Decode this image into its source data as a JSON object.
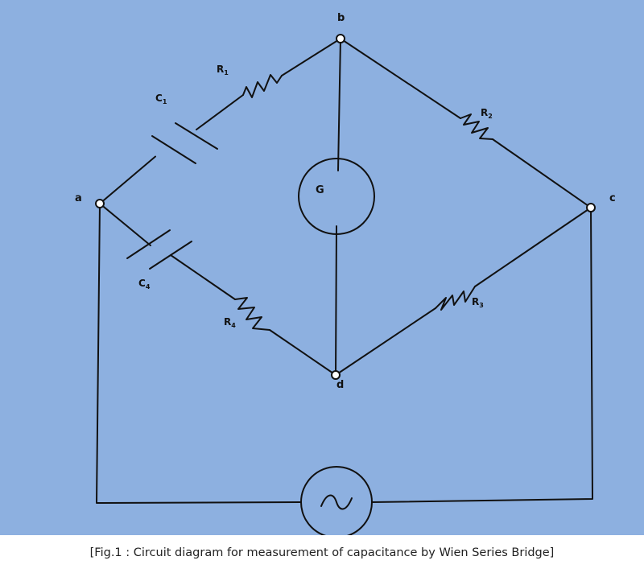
{
  "colors": {
    "background": "#8db0e0",
    "wire": "#111111",
    "node_fill": "#ffffff"
  },
  "nodes": {
    "a": "a",
    "b": "b",
    "c": "c",
    "d": "d"
  },
  "components": {
    "R1": {
      "letter": "R",
      "sub": "1"
    },
    "C1": {
      "letter": "C",
      "sub": "1"
    },
    "R2": {
      "letter": "R",
      "sub": "2"
    },
    "R3": {
      "letter": "R",
      "sub": "3"
    },
    "R4": {
      "letter": "R",
      "sub": "4"
    },
    "C4": {
      "letter": "C",
      "sub": "4"
    },
    "galvanometer": "G",
    "source_icon": "ac-source-icon"
  },
  "caption": "[Fig.1 : Circuit diagram for measurement of capacitance by Wien Series Bridge]"
}
